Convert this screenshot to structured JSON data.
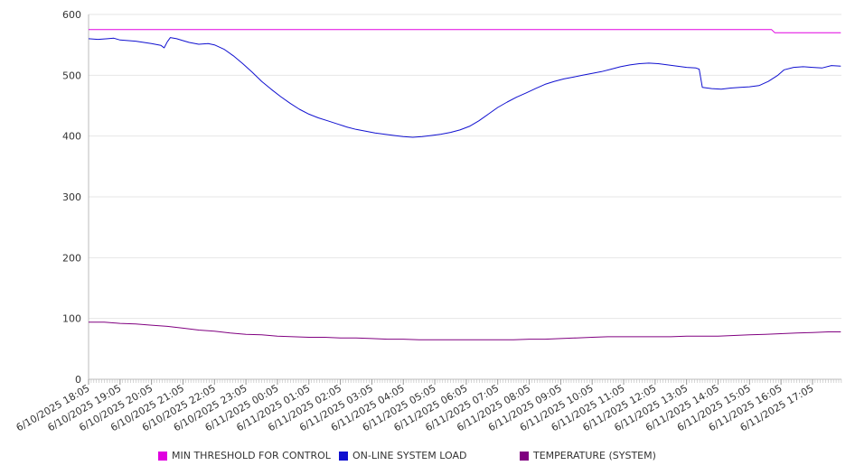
{
  "chart_data": {
    "type": "line",
    "title": "",
    "xlabel": "",
    "ylabel": "",
    "ylim": [
      0,
      600
    ],
    "y_ticks": [
      "0",
      "100",
      "200",
      "300",
      "400",
      "500",
      "600"
    ],
    "grid": "horizontal",
    "legend_position": "bottom",
    "x_tick_labels": [
      "6/10/2025 18:05",
      "6/10/2025 19:05",
      "6/10/2025 20:05",
      "6/10/2025 21:05",
      "6/10/2025 22:05",
      "6/10/2025 23:05",
      "6/11/2025 00:05",
      "6/11/2025 01:05",
      "6/11/2025 02:05",
      "6/11/2025 03:05",
      "6/11/2025 04:05",
      "6/11/2025 05:05",
      "6/11/2025 06:05",
      "6/11/2025 07:05",
      "6/11/2025 08:05",
      "6/11/2025 09:05",
      "6/11/2025 10:05",
      "6/11/2025 11:05",
      "6/11/2025 12:05",
      "6/11/2025 13:05",
      "6/11/2025 14:05",
      "6/11/2025 15:05",
      "6/11/2025 16:05",
      "6/11/2025 17:05"
    ],
    "series": [
      {
        "name": "MIN THRESHOLD FOR CONTROL",
        "color": "#e000e0",
        "points": [
          [
            0,
            575
          ],
          [
            21.7,
            575
          ],
          [
            21.8,
            570
          ],
          [
            23.9,
            570
          ]
        ]
      },
      {
        "name": "ON-LINE SYSTEM LOAD",
        "color": "#1010d0",
        "points": [
          [
            0,
            560
          ],
          [
            0.3,
            559
          ],
          [
            0.6,
            560
          ],
          [
            0.8,
            561
          ],
          [
            1.0,
            558
          ],
          [
            1.5,
            556
          ],
          [
            2.0,
            552
          ],
          [
            2.3,
            549
          ],
          [
            2.4,
            545
          ],
          [
            2.5,
            555
          ],
          [
            2.6,
            562
          ],
          [
            2.8,
            560
          ],
          [
            3.0,
            557
          ],
          [
            3.2,
            554
          ],
          [
            3.5,
            551
          ],
          [
            3.8,
            552
          ],
          [
            4.0,
            550
          ],
          [
            4.3,
            543
          ],
          [
            4.6,
            532
          ],
          [
            4.9,
            519
          ],
          [
            5.2,
            505
          ],
          [
            5.5,
            490
          ],
          [
            5.8,
            477
          ],
          [
            6.1,
            465
          ],
          [
            6.4,
            454
          ],
          [
            6.7,
            444
          ],
          [
            7.0,
            436
          ],
          [
            7.3,
            430
          ],
          [
            7.6,
            425
          ],
          [
            7.9,
            420
          ],
          [
            8.2,
            415
          ],
          [
            8.5,
            411
          ],
          [
            8.8,
            408
          ],
          [
            9.1,
            405
          ],
          [
            9.4,
            403
          ],
          [
            9.7,
            401
          ],
          [
            10.0,
            399
          ],
          [
            10.3,
            398
          ],
          [
            10.6,
            399
          ],
          [
            10.9,
            401
          ],
          [
            11.2,
            403
          ],
          [
            11.5,
            406
          ],
          [
            11.8,
            410
          ],
          [
            12.1,
            416
          ],
          [
            12.4,
            425
          ],
          [
            12.7,
            436
          ],
          [
            13.0,
            447
          ],
          [
            13.3,
            456
          ],
          [
            13.6,
            464
          ],
          [
            13.9,
            471
          ],
          [
            14.2,
            478
          ],
          [
            14.5,
            485
          ],
          [
            14.8,
            490
          ],
          [
            15.1,
            494
          ],
          [
            15.4,
            497
          ],
          [
            15.7,
            500
          ],
          [
            16.0,
            503
          ],
          [
            16.3,
            506
          ],
          [
            16.6,
            510
          ],
          [
            16.9,
            514
          ],
          [
            17.2,
            517
          ],
          [
            17.5,
            519
          ],
          [
            17.8,
            520
          ],
          [
            18.1,
            519
          ],
          [
            18.4,
            517
          ],
          [
            18.7,
            515
          ],
          [
            19.0,
            513
          ],
          [
            19.3,
            512
          ],
          [
            19.4,
            510
          ],
          [
            19.5,
            480
          ],
          [
            19.8,
            478
          ],
          [
            20.1,
            477
          ],
          [
            20.4,
            479
          ],
          [
            20.7,
            480
          ],
          [
            21.0,
            481
          ],
          [
            21.3,
            483
          ],
          [
            21.6,
            490
          ],
          [
            21.9,
            500
          ],
          [
            22.1,
            509
          ],
          [
            22.4,
            513
          ],
          [
            22.7,
            514
          ],
          [
            23.0,
            513
          ],
          [
            23.3,
            512
          ],
          [
            23.6,
            516
          ],
          [
            23.9,
            515
          ]
        ]
      },
      {
        "name": "TEMPERATURE (SYSTEM)",
        "color": "#800080",
        "points": [
          [
            0,
            94
          ],
          [
            0.5,
            94
          ],
          [
            1.0,
            92
          ],
          [
            1.5,
            91
          ],
          [
            2.0,
            89
          ],
          [
            2.5,
            87
          ],
          [
            3.0,
            84
          ],
          [
            3.5,
            81
          ],
          [
            4.0,
            79
          ],
          [
            4.5,
            76
          ],
          [
            5.0,
            74
          ],
          [
            5.5,
            73
          ],
          [
            6.0,
            71
          ],
          [
            6.5,
            70
          ],
          [
            7.0,
            69
          ],
          [
            7.5,
            69
          ],
          [
            8.0,
            68
          ],
          [
            8.5,
            68
          ],
          [
            9.0,
            67
          ],
          [
            9.5,
            66
          ],
          [
            10.0,
            66
          ],
          [
            10.5,
            65
          ],
          [
            11.0,
            65
          ],
          [
            11.5,
            65
          ],
          [
            12.0,
            65
          ],
          [
            12.5,
            65
          ],
          [
            13.0,
            65
          ],
          [
            13.5,
            65
          ],
          [
            14.0,
            66
          ],
          [
            14.5,
            66
          ],
          [
            15.0,
            67
          ],
          [
            15.5,
            68
          ],
          [
            16.0,
            69
          ],
          [
            16.5,
            70
          ],
          [
            17.0,
            70
          ],
          [
            17.5,
            70
          ],
          [
            18.0,
            70
          ],
          [
            18.5,
            70
          ],
          [
            19.0,
            71
          ],
          [
            19.5,
            71
          ],
          [
            20.0,
            71
          ],
          [
            20.5,
            72
          ],
          [
            21.0,
            73
          ],
          [
            21.5,
            74
          ],
          [
            22.0,
            75
          ],
          [
            22.5,
            76
          ],
          [
            23.0,
            77
          ],
          [
            23.5,
            78
          ],
          [
            23.9,
            78
          ]
        ]
      }
    ]
  }
}
